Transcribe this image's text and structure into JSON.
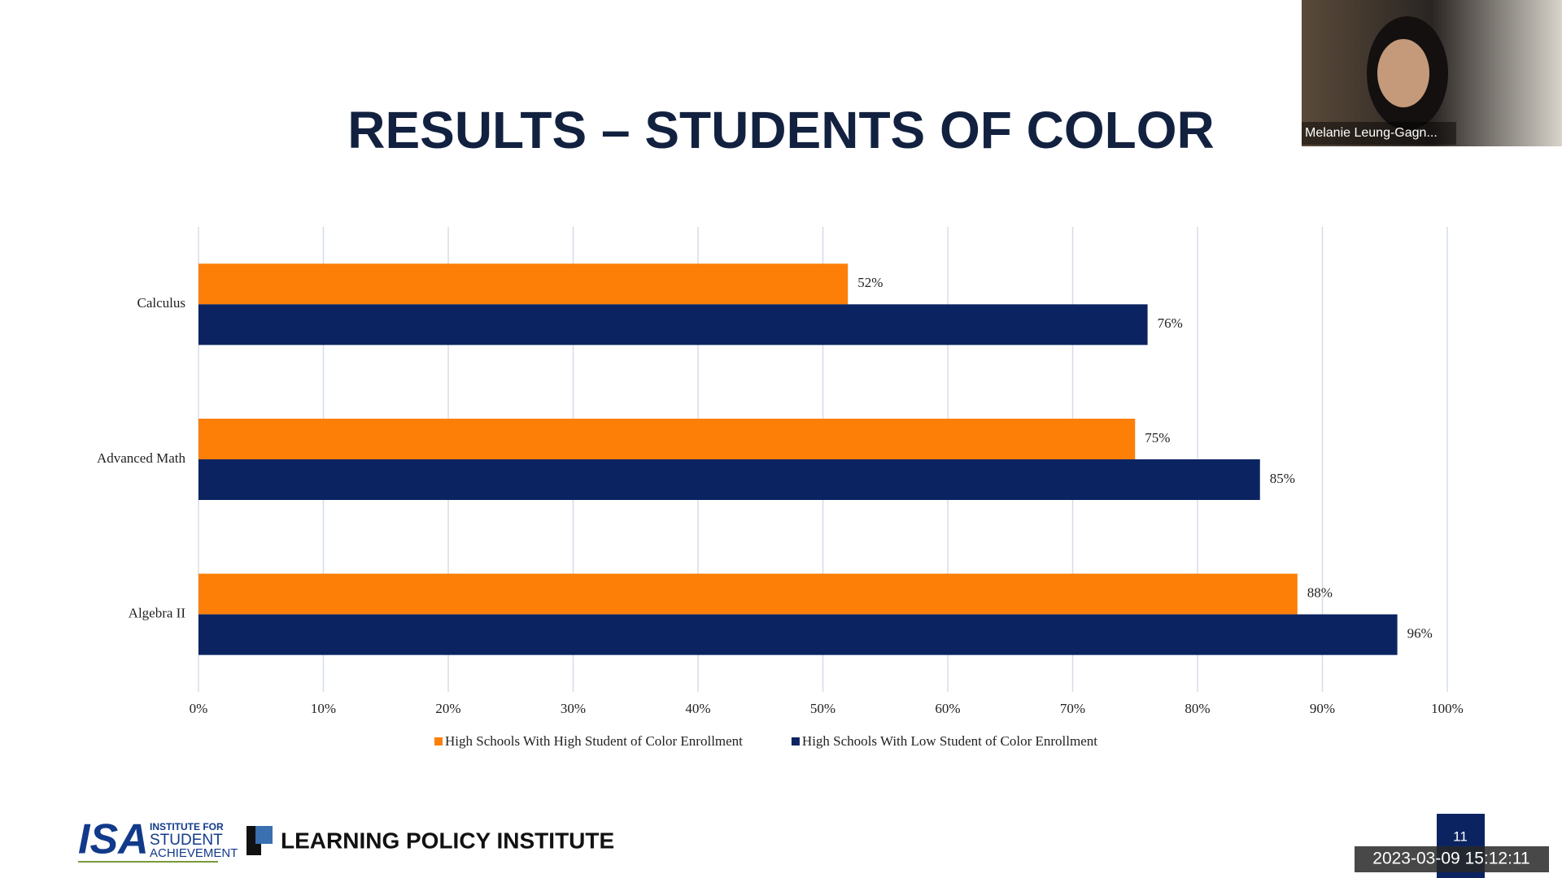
{
  "slide": {
    "title": "RESULTS – STUDENTS OF COLOR",
    "participant_name": "Melanie Leung-Gagn...",
    "logo_isa": "ISA",
    "logo_isa_sub": [
      "INSTITUTE FOR",
      "STUDENT",
      "ACHIEVEMENT"
    ],
    "logo_lpi": "LEARNING POLICY INSTITUTE",
    "page_number": 11,
    "timestamp": "2023-03-09 15:12:11"
  },
  "chart_data": {
    "type": "hbar",
    "categories": [
      "Calculus",
      "Advanced Math",
      "Algebra II"
    ],
    "series": [
      {
        "name": "High Schools With High Student of Color Enrollment",
        "color": "#fd7f07",
        "values": [
          52,
          75,
          88
        ],
        "value_labels": [
          "52%",
          "75%",
          "88%"
        ]
      },
      {
        "name": "High Schools With Low Student of Color Enrollment",
        "color": "#0b2461",
        "values": [
          76,
          85,
          96
        ],
        "value_labels": [
          "76%",
          "85%",
          "96%"
        ]
      }
    ],
    "xlim": [
      0,
      100
    ],
    "xticks": [
      {
        "value": 0,
        "label": "0%"
      },
      {
        "value": 10,
        "label": "10%"
      },
      {
        "value": 20,
        "label": "20%"
      },
      {
        "value": 30,
        "label": "30%"
      },
      {
        "value": 40,
        "label": "40%"
      },
      {
        "value": 50,
        "label": "50%"
      },
      {
        "value": 60,
        "label": "60%"
      },
      {
        "value": 70,
        "label": "70%"
      },
      {
        "value": 80,
        "label": "80%"
      },
      {
        "value": 90,
        "label": "90%"
      },
      {
        "value": 100,
        "label": "100%"
      }
    ],
    "grid": true,
    "legend": "bottom"
  }
}
